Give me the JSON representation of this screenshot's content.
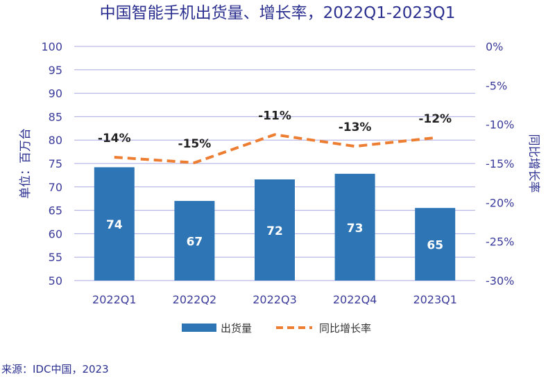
{
  "chart_data": {
    "type": "bar+line",
    "title": "中国智能手机出货量、增长率，2022Q1-2023Q1",
    "categories": [
      "2022Q1",
      "2022Q2",
      "2022Q3",
      "2022Q4",
      "2023Q1"
    ],
    "series": [
      {
        "name": "出货量",
        "type": "bar",
        "axis": "left",
        "values": [
          74.2,
          67.0,
          71.6,
          72.8,
          65.5
        ],
        "labels": [
          "74",
          "67",
          "72",
          "73",
          "65"
        ]
      },
      {
        "name": "同比增长率",
        "type": "line",
        "style": "dashed",
        "axis": "right",
        "values": [
          -14.2,
          -14.9,
          -11.3,
          -12.8,
          -11.7
        ],
        "labels": [
          "-14%",
          "-15%",
          "-11%",
          "-13%",
          "-12%"
        ]
      }
    ],
    "ylabel": "单位：百万台",
    "y2label": "同比增长率",
    "ylim": [
      50,
      100
    ],
    "y2lim": [
      -30,
      0
    ],
    "yticks": [
      "50",
      "55",
      "60",
      "65",
      "70",
      "75",
      "80",
      "85",
      "90",
      "95",
      "100"
    ],
    "y2ticks": [
      "-30%",
      "-25%",
      "-20%",
      "-15%",
      "-10%",
      "-5%",
      "0%"
    ],
    "grid": true,
    "legend_position": "bottom",
    "source": "来源：IDC中国，2023",
    "colors": {
      "bar": "#2e75b6",
      "line": "#ed7d31",
      "title": "#2a2f8f",
      "axis": "#3b3b9b",
      "grid": "#a9a9e0"
    }
  }
}
